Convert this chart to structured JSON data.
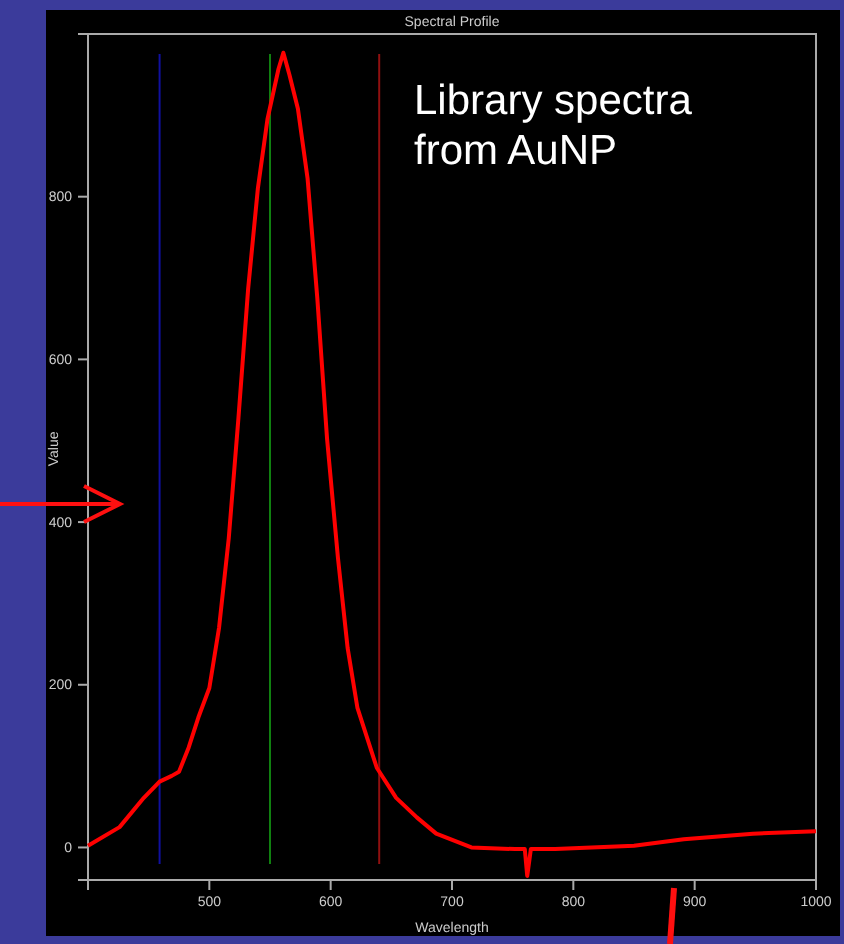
{
  "chart_data": {
    "type": "line",
    "title": "Spectral Profile",
    "xlabel": "Wavelength",
    "ylabel": "Value",
    "annotations": [
      "Library spectra from AuNP"
    ],
    "x": [
      400,
      426,
      446,
      459,
      469,
      475,
      483,
      491,
      500,
      508,
      516,
      524,
      532,
      540,
      548,
      557,
      561,
      566,
      573,
      581,
      589,
      597,
      606,
      614,
      622,
      638,
      654,
      671,
      687,
      716,
      752,
      760,
      762,
      765,
      785,
      850,
      891,
      948,
      1000
    ],
    "series": [
      {
        "color": "#ff0000",
        "values": [
          2,
          25,
          61,
          81,
          88,
          93,
          123,
          160,
          196,
          270,
          380,
          528,
          687,
          810,
          896,
          957,
          977,
          950,
          908,
          822,
          675,
          503,
          356,
          245,
          172,
          98,
          61,
          37,
          17,
          0,
          -2,
          -2,
          -35,
          -2,
          -2,
          2,
          10,
          17,
          20
        ]
      }
    ],
    "xlim": [
      400,
      1000
    ],
    "ylim": [
      -40,
      1000
    ],
    "xticks": [
      500,
      600,
      700,
      800,
      900,
      1000
    ],
    "yticks": [
      0,
      200,
      400,
      600,
      800
    ],
    "grid": false,
    "marker": "none",
    "line_style": "solid",
    "ref_lines": [
      {
        "axis": "x",
        "value": 459,
        "color": "#1010a0"
      },
      {
        "axis": "x",
        "value": 550,
        "color": "#108010"
      },
      {
        "axis": "x",
        "value": 640,
        "color": "#901010"
      }
    ]
  }
}
